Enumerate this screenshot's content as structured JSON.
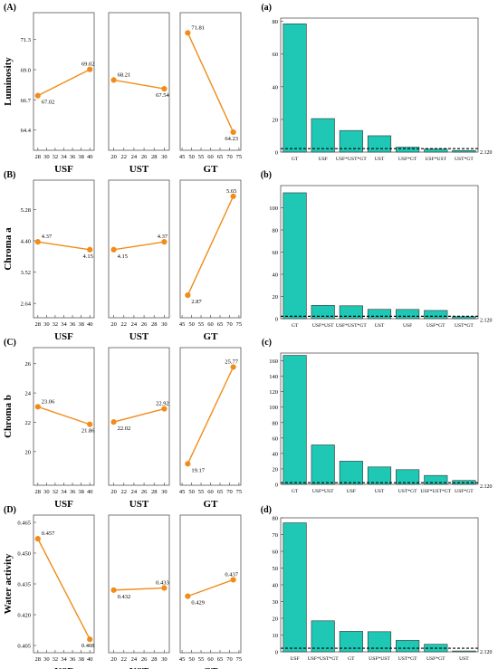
{
  "chart_data": [
    {
      "type": "line",
      "panel": "(A)",
      "ylabel": "Luminosity",
      "yticks": [
        "64.4",
        "66.7",
        "69.0",
        "71.3"
      ],
      "ylim": [
        63.4,
        72.8
      ],
      "factors": [
        {
          "name": "USF",
          "xticks": [
            "28",
            "30",
            "32",
            "34",
            "36",
            "38",
            "40"
          ],
          "xlim": [
            27,
            41
          ],
          "x": [
            28,
            40
          ],
          "values": [
            67.02,
            69.02
          ],
          "labels": [
            "67.02",
            "69.02"
          ]
        },
        {
          "name": "UST",
          "xticks": [
            "20",
            "22",
            "24",
            "26",
            "28",
            "30"
          ],
          "xlim": [
            19,
            31
          ],
          "x": [
            20,
            30
          ],
          "values": [
            68.21,
            67.54
          ],
          "labels": [
            "68.21",
            "67.54"
          ]
        },
        {
          "name": "GT",
          "xticks": [
            "45",
            "50",
            "55",
            "60",
            "65",
            "70",
            "75"
          ],
          "xlim": [
            44,
            76
          ],
          "x": [
            48,
            72
          ],
          "values": [
            71.81,
            64.23
          ],
          "labels": [
            "71.81",
            "64.23"
          ]
        }
      ]
    },
    {
      "type": "line",
      "panel": "(B)",
      "ylabel": "Chroma a",
      "yticks": [
        "2.64",
        "3.52",
        "4.40",
        "5.28"
      ],
      "ylim": [
        2.44,
        5.9
      ],
      "factors": [
        {
          "name": "USF",
          "xticks": [
            "28",
            "30",
            "32",
            "34",
            "36",
            "38",
            "40"
          ],
          "xlim": [
            27,
            41
          ],
          "x": [
            28,
            40
          ],
          "values": [
            4.37,
            4.15
          ],
          "labels": [
            "4.37",
            "4.15"
          ]
        },
        {
          "name": "UST",
          "xticks": [
            "20",
            "22",
            "24",
            "26",
            "28",
            "30"
          ],
          "xlim": [
            19,
            31
          ],
          "x": [
            20,
            30
          ],
          "values": [
            4.15,
            4.37
          ],
          "labels": [
            "4.15",
            "4.37"
          ]
        },
        {
          "name": "GT",
          "xticks": [
            "45",
            "50",
            "55",
            "60",
            "65",
            "70",
            "75"
          ],
          "xlim": [
            44,
            76
          ],
          "x": [
            48,
            72
          ],
          "values": [
            2.87,
            5.65
          ],
          "labels": [
            "2.87",
            "5.65"
          ]
        }
      ]
    },
    {
      "type": "line",
      "panel": "(C)",
      "ylabel": "Chroma b",
      "yticks": [
        "20",
        "22",
        "24",
        "26"
      ],
      "ylim": [
        18.2,
        26.6
      ],
      "factors": [
        {
          "name": "USF",
          "xticks": [
            "28",
            "30",
            "32",
            "34",
            "36",
            "38",
            "40"
          ],
          "xlim": [
            27,
            41
          ],
          "x": [
            28,
            40
          ],
          "values": [
            23.06,
            21.86
          ],
          "labels": [
            "23.06",
            "21.86"
          ]
        },
        {
          "name": "UST",
          "xticks": [
            "20",
            "22",
            "24",
            "26",
            "28",
            "30"
          ],
          "xlim": [
            19,
            31
          ],
          "x": [
            20,
            30
          ],
          "values": [
            22.02,
            22.92
          ],
          "labels": [
            "22.02",
            "22.92"
          ]
        },
        {
          "name": "GT",
          "xticks": [
            "45",
            "50",
            "55",
            "60",
            "65",
            "70",
            "75"
          ],
          "xlim": [
            44,
            76
          ],
          "x": [
            48,
            72
          ],
          "values": [
            19.17,
            25.77
          ],
          "labels": [
            "19.17",
            "25.77"
          ]
        }
      ]
    },
    {
      "type": "line",
      "panel": "(D)",
      "ylabel": "Water activity",
      "yticks": [
        "0.405",
        "0.420",
        "0.435",
        "0.450",
        "0.465"
      ],
      "ylim": [
        0.405,
        0.465
      ],
      "factors": [
        {
          "name": "USF",
          "xticks": [
            "28",
            "30",
            "32",
            "34",
            "36",
            "38",
            "40"
          ],
          "xlim": [
            27,
            41
          ],
          "x": [
            28,
            40
          ],
          "values": [
            0.457,
            0.408
          ],
          "labels": [
            "0.457",
            "0.408"
          ]
        },
        {
          "name": "UST",
          "xticks": [
            "20",
            "22",
            "24",
            "26",
            "28",
            "30"
          ],
          "xlim": [
            19,
            31
          ],
          "x": [
            20,
            30
          ],
          "values": [
            0.432,
            0.433
          ],
          "labels": [
            "0.432",
            "0.433"
          ]
        },
        {
          "name": "GT",
          "xticks": [
            "45",
            "50",
            "55",
            "60",
            "65",
            "70",
            "75"
          ],
          "xlim": [
            44,
            76
          ],
          "x": [
            48,
            72
          ],
          "values": [
            0.429,
            0.437
          ],
          "labels": [
            "0.429",
            "0.437"
          ]
        }
      ]
    },
    {
      "type": "bar",
      "panel": "(a)",
      "categories": [
        "GT",
        "USF",
        "USF*UST*GT",
        "UST",
        "USF*GT",
        "USF*UST",
        "UST*GT"
      ],
      "values": [
        78.5,
        20.5,
        13.2,
        10.0,
        3.0,
        1.8,
        1.0
      ],
      "ylim": [
        0,
        82
      ],
      "yticks": [
        "0",
        "20",
        "40",
        "60",
        "80"
      ],
      "reference_line": {
        "value": 2.12,
        "label": "2.120"
      }
    },
    {
      "type": "bar",
      "panel": "(b)",
      "categories": [
        "GT",
        "USF*UST",
        "USF*UST*GT",
        "UST",
        "USF",
        "USF*GT",
        "UST*GT"
      ],
      "values": [
        113.5,
        12.0,
        11.6,
        8.4,
        8.3,
        7.4,
        1.7
      ],
      "ylim": [
        0,
        120
      ],
      "yticks": [
        "0",
        "20",
        "40",
        "60",
        "80",
        "100"
      ],
      "reference_line": {
        "value": 2.12,
        "label": "2.120"
      }
    },
    {
      "type": "bar",
      "panel": "(c)",
      "categories": [
        "GT",
        "USF*UST",
        "USF",
        "UST",
        "UST*GT",
        "USF*UST*GT",
        "USF*GT"
      ],
      "values": [
        167.0,
        51.0,
        30.0,
        22.5,
        19.0,
        11.5,
        5.0
      ],
      "ylim": [
        0,
        170
      ],
      "yticks": [
        "0",
        "20",
        "40",
        "60",
        "80",
        "100",
        "120",
        "140",
        "160"
      ],
      "reference_line": {
        "value": 2.12,
        "label": "2.120"
      }
    },
    {
      "type": "bar",
      "panel": "(d)",
      "categories": [
        "USF",
        "USF*UST*GT",
        "GT",
        "USF*UST",
        "UST*GT",
        "USF*GT",
        "UST"
      ],
      "values": [
        77.0,
        18.5,
        12.2,
        12.0,
        6.8,
        4.5,
        0.5
      ],
      "ylim": [
        0,
        80
      ],
      "yticks": [
        "0",
        "10",
        "20",
        "30",
        "40",
        "50",
        "60",
        "70",
        "80"
      ],
      "reference_line": {
        "value": 2.12,
        "label": "2.120"
      }
    }
  ],
  "colors": {
    "line": "#f08c1a",
    "bar": "#1ec8b4",
    "bar_edge": "#333333",
    "axis": "#555555"
  }
}
